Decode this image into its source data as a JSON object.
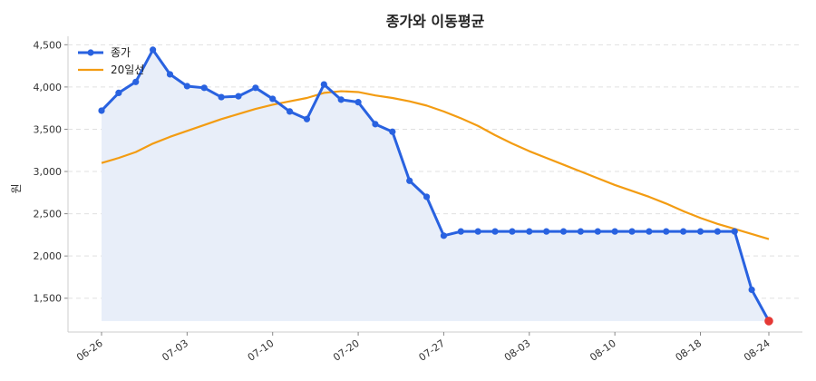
{
  "chart_data": {
    "type": "line",
    "title": "종가와 이동평균",
    "xlabel": "",
    "ylabel": "원",
    "ylim": [
      1100,
      4600
    ],
    "yticks": [
      1500,
      2000,
      2500,
      3000,
      3500,
      4000,
      4500
    ],
    "ytick_labels": [
      "1,500",
      "2,000",
      "2,500",
      "3,000",
      "3,500",
      "4,000",
      "4,500"
    ],
    "xticks": [
      "06-26",
      "07-03",
      "07-10",
      "07-20",
      "07-27",
      "08-03",
      "08-10",
      "08-18",
      "08-24"
    ],
    "xtick_positions": [
      0,
      5,
      10,
      15,
      20,
      25,
      30,
      35,
      39
    ],
    "grid": "horizontal-dashed",
    "legend_position": "top-left",
    "colors": {
      "close": "#2962e0",
      "ma": "#f39c12",
      "area_fill": "#e8eef9",
      "last_point": "#e53935",
      "grid": "#e0e0e0",
      "axis": "#cccccc"
    },
    "series": [
      {
        "name": "종가",
        "key": "close",
        "values": [
          3720,
          3930,
          4060,
          4440,
          4150,
          4010,
          3990,
          3880,
          3890,
          3990,
          3860,
          3710,
          3620,
          4030,
          3850,
          3820,
          3560,
          3470,
          2890,
          2700,
          2240,
          2290,
          2290,
          2290,
          2290,
          2290,
          2290,
          2290,
          2290,
          2290,
          2290,
          2290,
          2290,
          2290,
          2290,
          2290,
          2290,
          2290,
          1600,
          1230
        ]
      },
      {
        "name": "20일선",
        "key": "ma",
        "values": [
          3100,
          3160,
          3230,
          3330,
          3410,
          3480,
          3550,
          3620,
          3680,
          3740,
          3790,
          3830,
          3870,
          3930,
          3950,
          3940,
          3900,
          3870,
          3830,
          3780,
          3710,
          3630,
          3540,
          3430,
          3330,
          3240,
          3160,
          3080,
          3000,
          2920,
          2840,
          2770,
          2700,
          2620,
          2530,
          2450,
          2380,
          2320,
          2260,
          2200
        ]
      }
    ]
  }
}
